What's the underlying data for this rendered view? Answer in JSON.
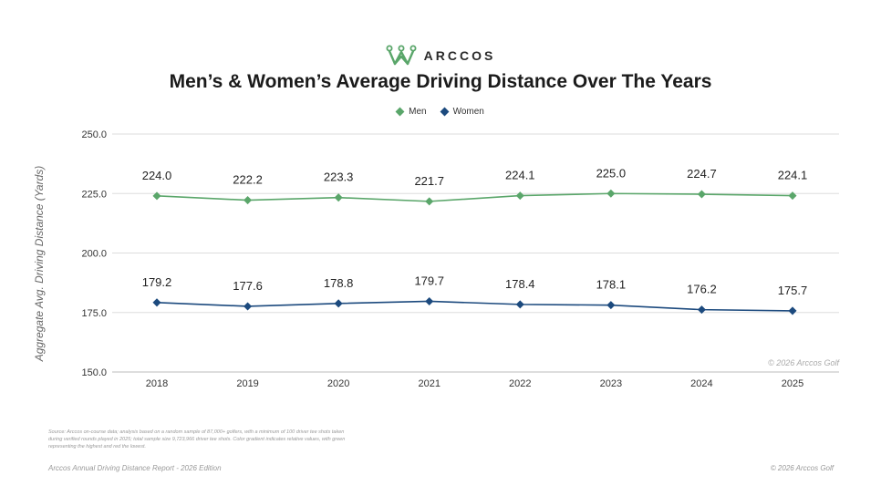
{
  "brand": {
    "name": "ARCCOS",
    "logo_icon": "arccos-crown-icon",
    "logo_color": "#5aa66a"
  },
  "chart_data": {
    "type": "line",
    "title": "Men’s & Women’s Average Driving Distance Over The Years",
    "ylabel": "Aggregate Avg. Driving Distance (Yards)",
    "xlabel": "",
    "categories": [
      "2018",
      "2019",
      "2020",
      "2021",
      "2022",
      "2023",
      "2024",
      "2025"
    ],
    "ylim": [
      150,
      250
    ],
    "yticks": [
      "250.0",
      "225.0",
      "200.0",
      "175.0",
      "150.0"
    ],
    "grid": true,
    "legend": "top-center",
    "series": [
      {
        "name": "Men",
        "color": "#5aa66a",
        "values": [
          224.0,
          222.2,
          223.3,
          221.7,
          224.1,
          225.0,
          224.7,
          224.1
        ],
        "labels": [
          "224.0",
          "222.2",
          "223.3",
          "221.7",
          "224.1",
          "225.0",
          "224.7",
          "224.1"
        ]
      },
      {
        "name": "Women",
        "color": "#1c4a7e",
        "values": [
          179.2,
          177.6,
          178.8,
          179.7,
          178.4,
          178.1,
          176.2,
          175.7
        ],
        "labels": [
          "179.2",
          "177.6",
          "178.8",
          "179.7",
          "178.4",
          "178.1",
          "176.2",
          "175.7"
        ]
      }
    ]
  },
  "watermark": "© 2026 Arccos Golf",
  "source_text": "Source: Arccos on-course data; analysis based on a random sample of 87,000+ golfers, with a minimum of 100 driver tee shots taken during verified rounds played in 2025; total sample size 9,723,966 driver tee shots. Color gradient indicates relative values, with green representing the highest and red the lowest.",
  "footer": {
    "left": "Arccos Annual Driving Distance Report - 2026 Edition",
    "right": "© 2026 Arccos Golf"
  }
}
